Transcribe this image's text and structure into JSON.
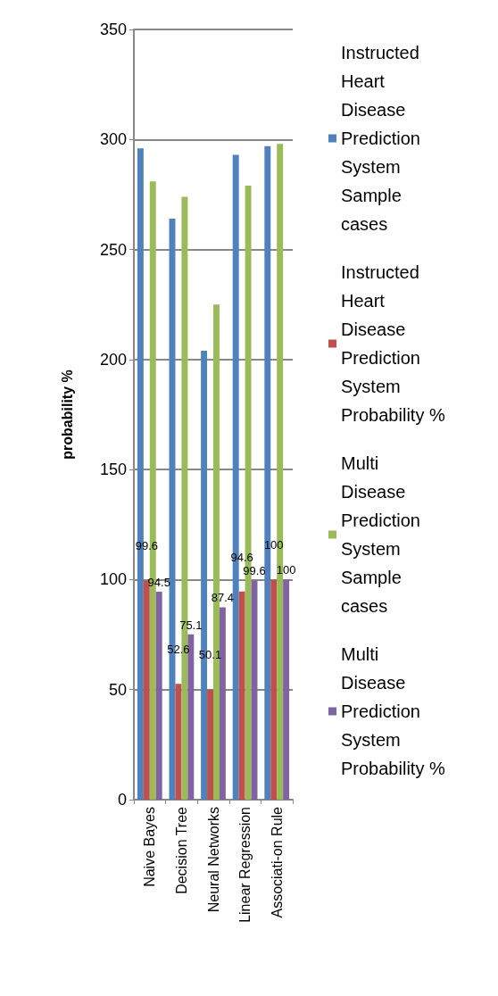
{
  "chart_data": {
    "type": "bar",
    "ylabel": "probability %",
    "categories": [
      "Naive Bayes",
      "Decision Tree",
      "Neural Networks",
      "Linear Regression",
      "Associati-on Rule"
    ],
    "series": [
      {
        "name": "Instructed Heart Disease Prediction System Sample cases",
        "color": "#4f81bd",
        "values": [
          296,
          264,
          204,
          293,
          297
        ]
      },
      {
        "name": "Instructed Heart Disease Prediction System Probability %",
        "color": "#c0504d",
        "values": [
          99.6,
          52.6,
          50.1,
          94.6,
          100
        ],
        "value_labels": [
          "99.6",
          "52.6",
          "50.1",
          "94.6",
          "100"
        ]
      },
      {
        "name": "Multi Disease Prediction System Sample cases",
        "color": "#9bbb59",
        "values": [
          281,
          274,
          225,
          279,
          298
        ]
      },
      {
        "name": "Multi Disease Prediction System Probability %",
        "color": "#8064a2",
        "values": [
          94.5,
          75.1,
          87.4,
          99.6,
          100
        ],
        "value_labels": [
          "94.5",
          "75.1",
          "87.4",
          "99.6",
          "100"
        ]
      }
    ],
    "ylim": [
      0,
      350
    ],
    "yticks": [
      0,
      50,
      100,
      150,
      200,
      250,
      300,
      350
    ],
    "grid": "y",
    "legend": "right"
  }
}
